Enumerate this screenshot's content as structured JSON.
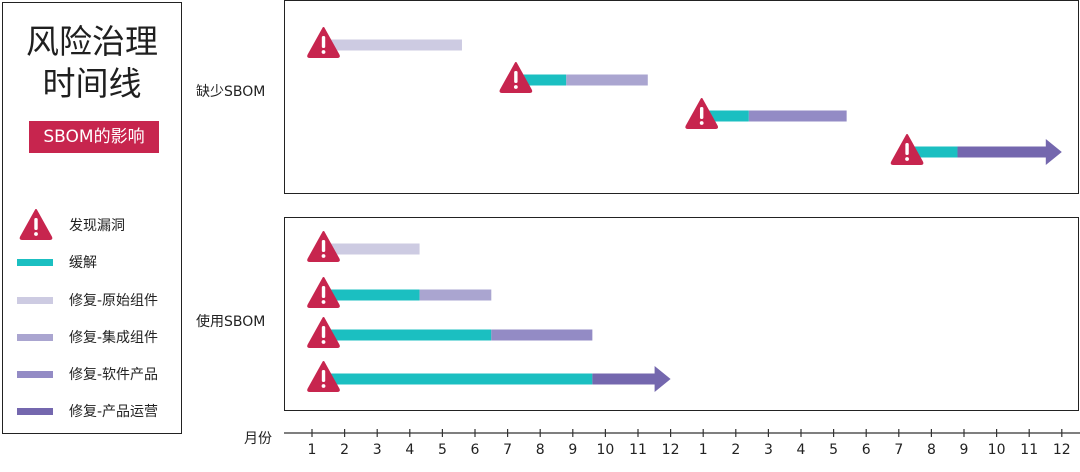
{
  "title": {
    "line1": "风险治理",
    "line2": "时间线"
  },
  "badge": "SBOM的影响",
  "colors": {
    "warning": "#c7254e",
    "mitigate": "#1bbfc1",
    "fix_original": "#cdcbe2",
    "fix_integrated": "#aaa5d0",
    "fix_software": "#938bc5",
    "fix_operations": "#7467ae"
  },
  "legend": [
    {
      "kind": "warn",
      "label": "发现漏洞",
      "color": "#c7254e"
    },
    {
      "kind": "bar",
      "label": "缓解",
      "color": "#1bbfc1"
    },
    {
      "kind": "bar",
      "label": "修复-原始组件",
      "color": "#cdcbe2"
    },
    {
      "kind": "bar",
      "label": "修复-集成组件",
      "color": "#aaa5d0"
    },
    {
      "kind": "bar",
      "label": "修复-软件产品",
      "color": "#938bc5"
    },
    {
      "kind": "bar",
      "label": "修复-产品运营",
      "color": "#7467ae"
    }
  ],
  "rows": {
    "without": "缺少SBOM",
    "with": "使用SBOM"
  },
  "axis": {
    "label": "月份",
    "ticks": [
      "1",
      "2",
      "3",
      "4",
      "5",
      "6",
      "7",
      "8",
      "9",
      "10",
      "11",
      "12",
      "1",
      "2",
      "3",
      "4",
      "5",
      "6",
      "7",
      "8",
      "9",
      "10",
      "11",
      "12"
    ]
  },
  "chart_data": {
    "type": "timeline",
    "x_unit": "month index over two years (1–24)",
    "xlim": [
      0.5,
      24.5
    ],
    "groups": [
      {
        "name": "缺少SBOM",
        "bars": [
          {
            "discover": 1.2,
            "segments": [
              {
                "type": "修复-原始组件",
                "start": 1.2,
                "end": 5.6
              }
            ],
            "arrow": false
          },
          {
            "discover": 7.1,
            "segments": [
              {
                "type": "缓解",
                "start": 7.1,
                "end": 8.8
              },
              {
                "type": "修复-集成组件",
                "start": 8.8,
                "end": 11.3
              }
            ],
            "arrow": false
          },
          {
            "discover": 12.8,
            "segments": [
              {
                "type": "缓解",
                "start": 12.8,
                "end": 14.4
              },
              {
                "type": "修复-软件产品",
                "start": 14.4,
                "end": 17.4
              }
            ],
            "arrow": false
          },
          {
            "discover": 19.1,
            "segments": [
              {
                "type": "缓解",
                "start": 19.1,
                "end": 20.8
              },
              {
                "type": "修复-产品运营",
                "start": 20.8,
                "end": 24.0
              }
            ],
            "arrow": true
          }
        ]
      },
      {
        "name": "使用SBOM",
        "bars": [
          {
            "discover": 1.2,
            "segments": [
              {
                "type": "修复-原始组件",
                "start": 1.2,
                "end": 4.3
              }
            ],
            "arrow": false
          },
          {
            "discover": 1.2,
            "segments": [
              {
                "type": "缓解",
                "start": 1.2,
                "end": 4.3
              },
              {
                "type": "修复-集成组件",
                "start": 4.3,
                "end": 6.5
              }
            ],
            "arrow": false
          },
          {
            "discover": 1.2,
            "segments": [
              {
                "type": "缓解",
                "start": 1.2,
                "end": 6.5
              },
              {
                "type": "修复-软件产品",
                "start": 6.5,
                "end": 9.6
              }
            ],
            "arrow": false
          },
          {
            "discover": 1.2,
            "segments": [
              {
                "type": "缓解",
                "start": 1.2,
                "end": 9.6
              },
              {
                "type": "修复-产品运营",
                "start": 9.6,
                "end": 12.0
              }
            ],
            "arrow": true
          }
        ]
      }
    ]
  }
}
